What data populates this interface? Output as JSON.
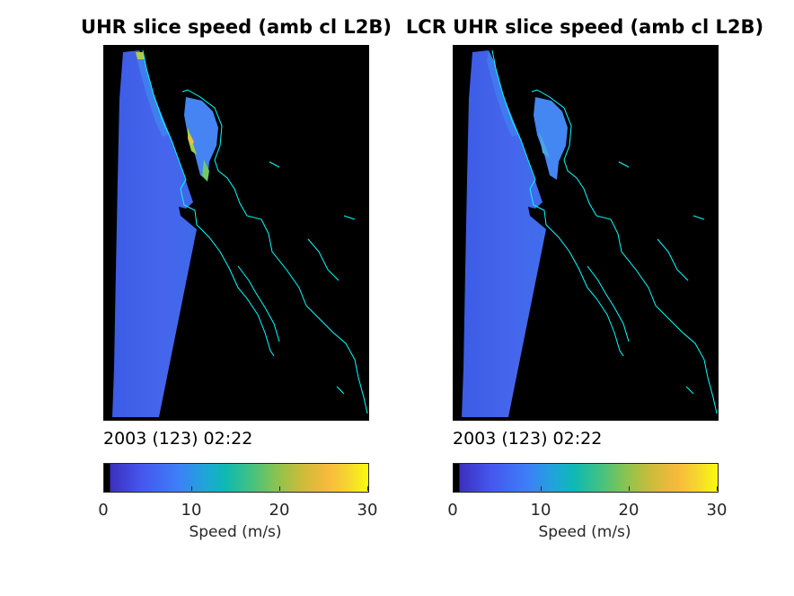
{
  "left": {
    "title": "UHR slice speed (amb cl L2B)",
    "timestamp": "2003 (123) 02:22",
    "colorbar": {
      "label": "Speed (m/s)",
      "ticks": [
        "0",
        "10",
        "20",
        "30"
      ],
      "range": [
        0,
        30
      ]
    }
  },
  "right": {
    "title": "LCR UHR slice speed (amb cl L2B)",
    "timestamp": "2003 (123) 02:22",
    "colorbar": {
      "label": "Speed (m/s)",
      "ticks": [
        "0",
        "10",
        "20",
        "30"
      ],
      "range": [
        0,
        30
      ]
    }
  },
  "colors": {
    "background": "#000000",
    "coastline": "#00ffff",
    "ocean_speed_fill": "#4060e8"
  }
}
